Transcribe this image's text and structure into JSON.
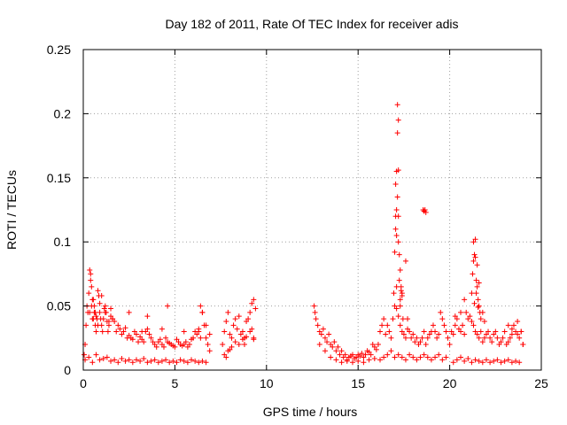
{
  "chart_data": {
    "type": "scatter",
    "title": "Day 182 of 2011, Rate Of TEC Index for receiver adis",
    "xlabel": "GPS time / hours",
    "ylabel": "ROTI / TECUs",
    "xlim": [
      0,
      25
    ],
    "ylim": [
      0,
      0.25
    ],
    "x_ticks": [
      0,
      5,
      10,
      15,
      20,
      25
    ],
    "x_tick_labels": [
      "0",
      "5",
      "10",
      "15",
      "20",
      "25"
    ],
    "y_ticks": [
      0,
      0.05,
      0.1,
      0.15,
      0.2,
      0.25
    ],
    "y_tick_labels": [
      "0",
      "0.05",
      "0.1",
      "0.15",
      "0.2",
      "0.25"
    ],
    "grid": true,
    "marker": "+",
    "color": "#ff0000",
    "series": [
      {
        "x": [
          0.05,
          0.1,
          0.15,
          0.2,
          0.25,
          0.3,
          0.35,
          0.4,
          0.45,
          0.5,
          0.55,
          0.6,
          0.65,
          0.7,
          0.75,
          0.8,
          0.85,
          0.9,
          0.95,
          1.0,
          1.05,
          1.1,
          1.15,
          1.2,
          1.25,
          1.3,
          1.35,
          1.4,
          1.5,
          1.6,
          1.7,
          1.8,
          1.9,
          2.0,
          2.1,
          2.2,
          2.3,
          2.4,
          2.5,
          2.6,
          2.7,
          2.8,
          2.9,
          3.0,
          3.1,
          3.2,
          3.3,
          3.4,
          3.5,
          3.6,
          3.7,
          3.8,
          3.9,
          4.0,
          4.1,
          4.2,
          4.3,
          4.4,
          4.5,
          4.6,
          4.7,
          4.8,
          4.9,
          5.0,
          5.1,
          5.2,
          5.3,
          5.4,
          5.5,
          5.6,
          5.7,
          5.8,
          5.9,
          6.0,
          6.1,
          6.2,
          6.3,
          6.4,
          6.5,
          6.6,
          6.7,
          6.8,
          6.9,
          0.1,
          0.3,
          0.5,
          0.7,
          0.9,
          1.1,
          1.3,
          1.5,
          1.7,
          1.9,
          2.1,
          2.3,
          2.5,
          2.7,
          2.9,
          3.1,
          3.3,
          3.5,
          3.7,
          3.9,
          4.1,
          4.3,
          4.5,
          4.7,
          4.9,
          5.1,
          5.3,
          5.5,
          5.7,
          5.9,
          6.1,
          6.3,
          6.5,
          6.7,
          0.35,
          0.4,
          0.45,
          0.5,
          0.55,
          0.6,
          0.65,
          0.7,
          0.8,
          0.9,
          1.0,
          1.2,
          1.4,
          1.5,
          1.6,
          2.5,
          3.2,
          3.5,
          4.3,
          4.6,
          5.5,
          6.3,
          6.4,
          6.5,
          6.7,
          6.9,
          7.6,
          7.7,
          7.8,
          7.9,
          8.0,
          8.1,
          8.2,
          8.3,
          8.4,
          8.5,
          8.6,
          8.7,
          8.8,
          8.9,
          9.0,
          9.1,
          9.2,
          9.3,
          9.4,
          7.7,
          7.9,
          8.1,
          8.3,
          8.5,
          8.7,
          8.9,
          9.1,
          9.3,
          7.8,
          8.0,
          8.8,
          9.2,
          9.3,
          12.6,
          12.7,
          12.8,
          12.9,
          13.0,
          13.1,
          13.2,
          13.3,
          13.4,
          13.5,
          13.6,
          13.7,
          13.8,
          13.9,
          14.0,
          14.1,
          14.2,
          14.3,
          14.4,
          14.5,
          14.6,
          14.7,
          14.8,
          14.9,
          15.0,
          15.1,
          15.2,
          15.3,
          15.4,
          15.5,
          15.6,
          15.7,
          15.8,
          15.9,
          16.0,
          12.65,
          12.9,
          13.2,
          13.5,
          13.8,
          14.1,
          14.4,
          14.7,
          15.0,
          15.3,
          15.6,
          15.9,
          16.1,
          16.2,
          16.3,
          16.4,
          16.5,
          16.6,
          16.7,
          16.8,
          16.9,
          17.0,
          17.1,
          17.2,
          17.3,
          17.4,
          17.5,
          17.6,
          17.7,
          17.8,
          17.9,
          18.0,
          18.1,
          18.2,
          18.3,
          18.4,
          18.5,
          18.6,
          18.7,
          18.8,
          18.9,
          19.0,
          19.1,
          19.2,
          19.3,
          19.4,
          19.5,
          19.6,
          19.7,
          19.8,
          19.9,
          20.0,
          16.2,
          16.4,
          16.6,
          16.8,
          17.0,
          17.2,
          17.4,
          17.6,
          17.8,
          18.0,
          18.2,
          18.4,
          18.6,
          18.8,
          19.0,
          19.2,
          19.4,
          19.6,
          19.8,
          16.95,
          17.0,
          17.05,
          17.05,
          17.1,
          17.1,
          17.15,
          17.15,
          17.2,
          17.2,
          17.25,
          17.3,
          17.35,
          17.4,
          17.05,
          17.1,
          17.15,
          17.2,
          17.25,
          17.3,
          17.35,
          17.4,
          17.45,
          17.1,
          17.2,
          17.3,
          17.6,
          17.7,
          18.55,
          18.6,
          18.65,
          18.7,
          20.1,
          20.2,
          20.3,
          20.4,
          20.5,
          20.6,
          20.7,
          20.8,
          20.9,
          21.0,
          21.1,
          21.2,
          21.3,
          21.4,
          21.5,
          21.6,
          21.7,
          21.8,
          21.9,
          22.0,
          22.1,
          22.2,
          22.3,
          22.4,
          22.5,
          22.6,
          22.7,
          22.8,
          22.9,
          23.0,
          23.1,
          23.2,
          23.3,
          23.4,
          23.5,
          23.6,
          23.7,
          23.8,
          23.9,
          24.0,
          20.2,
          20.4,
          20.6,
          20.8,
          21.0,
          21.2,
          21.4,
          21.6,
          21.8,
          22.0,
          22.2,
          22.4,
          22.6,
          22.8,
          23.0,
          23.2,
          23.4,
          23.6,
          23.8,
          21.2,
          21.25,
          21.3,
          21.35,
          21.4,
          21.45,
          21.5,
          21.55,
          21.6,
          21.65,
          21.7,
          21.3,
          21.4,
          21.5,
          21.6,
          21.8,
          21.9,
          21.35,
          21.45,
          21.55,
          20.6,
          20.8,
          20.3,
          23.2,
          23.4,
          23.7,
          23.9,
          24.0
        ],
        "y": [
          0.012,
          0.02,
          0.035,
          0.05,
          0.045,
          0.06,
          0.078,
          0.075,
          0.05,
          0.04,
          0.055,
          0.045,
          0.035,
          0.03,
          0.04,
          0.062,
          0.058,
          0.045,
          0.04,
          0.035,
          0.03,
          0.04,
          0.048,
          0.05,
          0.045,
          0.038,
          0.03,
          0.035,
          0.048,
          0.04,
          0.038,
          0.03,
          0.035,
          0.032,
          0.028,
          0.03,
          0.033,
          0.025,
          0.027,
          0.025,
          0.024,
          0.03,
          0.028,
          0.022,
          0.026,
          0.024,
          0.022,
          0.03,
          0.032,
          0.028,
          0.025,
          0.022,
          0.02,
          0.018,
          0.022,
          0.024,
          0.02,
          0.018,
          0.025,
          0.022,
          0.021,
          0.02,
          0.019,
          0.018,
          0.024,
          0.022,
          0.02,
          0.019,
          0.02,
          0.022,
          0.018,
          0.02,
          0.024,
          0.025,
          0.03,
          0.028,
          0.032,
          0.05,
          0.045,
          0.035,
          0.025,
          0.02,
          0.015,
          0.008,
          0.01,
          0.006,
          0.012,
          0.008,
          0.009,
          0.01,
          0.007,
          0.008,
          0.006,
          0.009,
          0.007,
          0.008,
          0.006,
          0.008,
          0.007,
          0.009,
          0.006,
          0.007,
          0.008,
          0.006,
          0.007,
          0.008,
          0.006,
          0.007,
          0.006,
          0.008,
          0.007,
          0.006,
          0.008,
          0.007,
          0.006,
          0.007,
          0.006,
          0.045,
          0.07,
          0.065,
          0.055,
          0.04,
          0.05,
          0.045,
          0.042,
          0.035,
          0.052,
          0.058,
          0.045,
          0.038,
          0.042,
          0.04,
          0.045,
          0.03,
          0.042,
          0.032,
          0.05,
          0.03,
          0.03,
          0.025,
          0.045,
          0.035,
          0.028,
          0.02,
          0.03,
          0.038,
          0.045,
          0.028,
          0.025,
          0.035,
          0.04,
          0.032,
          0.042,
          0.028,
          0.03,
          0.025,
          0.038,
          0.04,
          0.045,
          0.052,
          0.055,
          0.048,
          0.012,
          0.015,
          0.018,
          0.022,
          0.02,
          0.024,
          0.026,
          0.03,
          0.025,
          0.01,
          0.016,
          0.02,
          0.032,
          0.024,
          0.05,
          0.04,
          0.035,
          0.03,
          0.028,
          0.032,
          0.025,
          0.022,
          0.028,
          0.02,
          0.018,
          0.022,
          0.015,
          0.018,
          0.012,
          0.015,
          0.01,
          0.012,
          0.008,
          0.01,
          0.011,
          0.012,
          0.009,
          0.01,
          0.012,
          0.011,
          0.013,
          0.01,
          0.012,
          0.015,
          0.014,
          0.012,
          0.02,
          0.018,
          0.016,
          0.045,
          0.02,
          0.015,
          0.01,
          0.008,
          0.006,
          0.007,
          0.006,
          0.007,
          0.006,
          0.008,
          0.009,
          0.02,
          0.03,
          0.035,
          0.04,
          0.028,
          0.035,
          0.03,
          0.025,
          0.04,
          0.05,
          0.048,
          0.042,
          0.035,
          0.03,
          0.028,
          0.025,
          0.032,
          0.03,
          0.025,
          0.028,
          0.022,
          0.025,
          0.02,
          0.022,
          0.025,
          0.03,
          0.02,
          0.025,
          0.028,
          0.03,
          0.035,
          0.03,
          0.025,
          0.028,
          0.045,
          0.04,
          0.035,
          0.03,
          0.025,
          0.02,
          0.008,
          0.01,
          0.012,
          0.015,
          0.01,
          0.012,
          0.01,
          0.008,
          0.012,
          0.01,
          0.008,
          0.01,
          0.012,
          0.01,
          0.008,
          0.01,
          0.012,
          0.008,
          0.01,
          0.06,
          0.092,
          0.145,
          0.12,
          0.125,
          0.155,
          0.207,
          0.185,
          0.195,
          0.156,
          0.09,
          0.078,
          0.065,
          0.06,
          0.11,
          0.105,
          0.135,
          0.1,
          0.07,
          0.055,
          0.062,
          0.058,
          0.04,
          0.065,
          0.12,
          0.05,
          0.085,
          0.04,
          0.125,
          0.124,
          0.125,
          0.123,
          0.03,
          0.028,
          0.035,
          0.04,
          0.032,
          0.03,
          0.035,
          0.028,
          0.045,
          0.04,
          0.042,
          0.038,
          0.035,
          0.03,
          0.028,
          0.025,
          0.03,
          0.022,
          0.025,
          0.028,
          0.03,
          0.025,
          0.022,
          0.028,
          0.03,
          0.025,
          0.02,
          0.022,
          0.025,
          0.03,
          0.02,
          0.022,
          0.025,
          0.028,
          0.035,
          0.03,
          0.028,
          0.025,
          0.03,
          0.02,
          0.006,
          0.008,
          0.01,
          0.007,
          0.009,
          0.006,
          0.008,
          0.007,
          0.006,
          0.008,
          0.006,
          0.007,
          0.008,
          0.006,
          0.007,
          0.008,
          0.006,
          0.007,
          0.006,
          0.06,
          0.075,
          0.085,
          0.09,
          0.088,
          0.07,
          0.065,
          0.055,
          0.05,
          0.045,
          0.04,
          0.1,
          0.102,
          0.082,
          0.068,
          0.045,
          0.038,
          0.052,
          0.06,
          0.049,
          0.045,
          0.055,
          0.042,
          0.035,
          0.032,
          0.038,
          0.03,
          0.02
        ]
      }
    ]
  }
}
